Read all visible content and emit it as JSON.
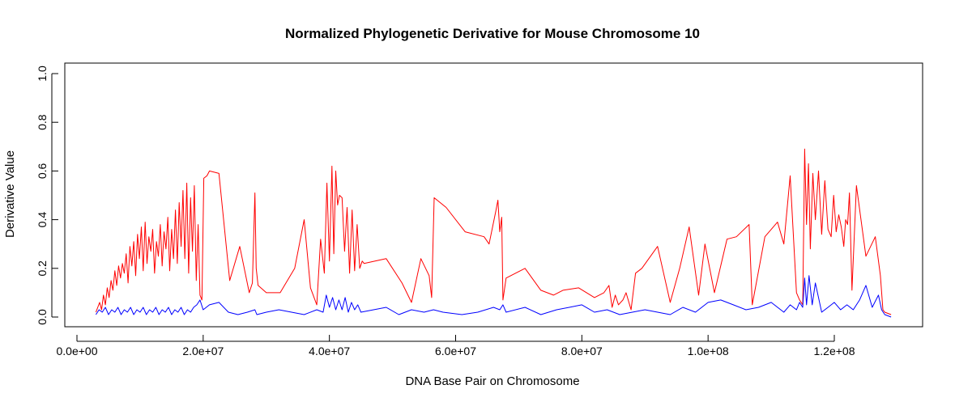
{
  "chart_data": {
    "type": "line",
    "title": "Normalized Phylogenetic Derivative for Mouse Chromosome 10",
    "xlabel": "DNA Base Pair on Chromosome",
    "ylabel": "Derivative Value",
    "xlim": [
      0,
      130000000
    ],
    "ylim": [
      0,
      1.0
    ],
    "x_ticks": [
      {
        "value": 0,
        "label": "0.0e+00"
      },
      {
        "value": 20000000,
        "label": "2.0e+07"
      },
      {
        "value": 40000000,
        "label": "4.0e+07"
      },
      {
        "value": 60000000,
        "label": "6.0e+07"
      },
      {
        "value": 80000000,
        "label": "8.0e+07"
      },
      {
        "value": 100000000,
        "label": "1.0e+08"
      },
      {
        "value": 120000000,
        "label": "1.2e+08"
      }
    ],
    "y_ticks": [
      {
        "value": 0.0,
        "label": "0.0"
      },
      {
        "value": 0.2,
        "label": "0.2"
      },
      {
        "value": 0.4,
        "label": "0.4"
      },
      {
        "value": 0.6,
        "label": "0.6"
      },
      {
        "value": 0.8,
        "label": "0.8"
      },
      {
        "value": 1.0,
        "label": "1.0"
      }
    ],
    "series": [
      {
        "name": "red-series",
        "color": "#ff0000",
        "x": [
          3000000,
          3300000,
          3600000,
          3900000,
          4200000,
          4500000,
          4800000,
          5100000,
          5400000,
          5700000,
          6000000,
          6300000,
          6600000,
          6900000,
          7200000,
          7500000,
          7800000,
          8100000,
          8400000,
          8700000,
          9000000,
          9300000,
          9600000,
          9900000,
          10200000,
          10500000,
          10800000,
          11100000,
          11400000,
          11700000,
          12000000,
          12300000,
          12600000,
          12900000,
          13200000,
          13500000,
          13800000,
          14100000,
          14400000,
          14700000,
          15000000,
          15300000,
          15600000,
          15900000,
          16200000,
          16500000,
          16800000,
          17100000,
          17400000,
          17700000,
          18000000,
          18300000,
          18600000,
          18900000,
          19200000,
          19500000,
          19800000,
          20100000,
          20600000,
          21000000,
          22500000,
          24200000,
          25800000,
          27300000,
          27800000,
          28200000,
          28400000,
          28700000,
          30000000,
          32200000,
          34500000,
          36000000,
          37000000,
          38000000,
          38600000,
          39200000,
          39600000,
          40000000,
          40400000,
          40700000,
          41000000,
          41300000,
          41600000,
          42000000,
          42400000,
          42800000,
          43200000,
          43600000,
          44000000,
          44400000,
          44800000,
          45200000,
          45500000,
          49000000,
          51500000,
          53000000,
          54500000,
          55800000,
          56200000,
          56600000,
          58500000,
          61500000,
          64500000,
          65300000,
          66400000,
          66700000,
          67000000,
          67300000,
          67500000,
          68000000,
          71000000,
          73500000,
          75500000,
          77000000,
          79500000,
          82000000,
          83500000,
          84300000,
          84800000,
          85300000,
          85800000,
          86500000,
          87000000,
          87800000,
          88500000,
          89500000,
          92000000,
          94000000,
          95500000,
          97000000,
          98500000,
          99500000,
          101000000,
          103000000,
          104500000,
          106500000,
          107000000,
          109000000,
          111000000,
          112000000,
          113000000,
          114000000,
          114500000,
          115000000,
          115300000,
          115600000,
          115900000,
          116200000,
          116600000,
          117000000,
          117500000,
          118000000,
          118500000,
          119000000,
          119500000,
          119900000,
          120300000,
          120700000,
          121100000,
          121500000,
          121800000,
          122100000,
          122400000,
          122800000,
          123500000,
          125000000,
          126500000,
          127300000,
          127700000,
          128000000,
          129000000
        ],
        "y": [
          0.02,
          0.04,
          0.06,
          0.03,
          0.09,
          0.05,
          0.12,
          0.08,
          0.15,
          0.11,
          0.19,
          0.13,
          0.21,
          0.16,
          0.22,
          0.18,
          0.26,
          0.14,
          0.29,
          0.21,
          0.31,
          0.17,
          0.34,
          0.24,
          0.37,
          0.19,
          0.39,
          0.22,
          0.33,
          0.27,
          0.36,
          0.18,
          0.31,
          0.25,
          0.38,
          0.21,
          0.35,
          0.28,
          0.41,
          0.19,
          0.36,
          0.24,
          0.44,
          0.22,
          0.47,
          0.29,
          0.52,
          0.24,
          0.55,
          0.18,
          0.49,
          0.27,
          0.54,
          0.15,
          0.38,
          0.09,
          0.07,
          0.57,
          0.58,
          0.6,
          0.59,
          0.15,
          0.29,
          0.1,
          0.14,
          0.51,
          0.2,
          0.13,
          0.1,
          0.1,
          0.2,
          0.4,
          0.12,
          0.05,
          0.32,
          0.18,
          0.55,
          0.23,
          0.62,
          0.26,
          0.6,
          0.46,
          0.5,
          0.49,
          0.27,
          0.45,
          0.18,
          0.44,
          0.19,
          0.38,
          0.2,
          0.23,
          0.22,
          0.24,
          0.14,
          0.06,
          0.24,
          0.17,
          0.08,
          0.49,
          0.45,
          0.35,
          0.33,
          0.3,
          0.44,
          0.48,
          0.35,
          0.41,
          0.07,
          0.16,
          0.2,
          0.11,
          0.09,
          0.11,
          0.12,
          0.08,
          0.1,
          0.13,
          0.04,
          0.09,
          0.05,
          0.07,
          0.1,
          0.03,
          0.18,
          0.2,
          0.29,
          0.06,
          0.2,
          0.37,
          0.09,
          0.3,
          0.1,
          0.32,
          0.33,
          0.38,
          0.05,
          0.33,
          0.39,
          0.3,
          0.58,
          0.1,
          0.07,
          0.05,
          0.69,
          0.38,
          0.63,
          0.28,
          0.59,
          0.4,
          0.6,
          0.34,
          0.56,
          0.36,
          0.33,
          0.5,
          0.35,
          0.42,
          0.37,
          0.29,
          0.4,
          0.38,
          0.51,
          0.11,
          0.54,
          0.25,
          0.33,
          0.17,
          0.03,
          0.02,
          0.01
        ]
      },
      {
        "name": "blue-series",
        "color": "#0000ff",
        "x": [
          3000000,
          3500000,
          4000000,
          4500000,
          5000000,
          5500000,
          6000000,
          6500000,
          7000000,
          7500000,
          8000000,
          8500000,
          9000000,
          9500000,
          10000000,
          10500000,
          11000000,
          11500000,
          12000000,
          12500000,
          13000000,
          13500000,
          14000000,
          14500000,
          15000000,
          15500000,
          16000000,
          16500000,
          17000000,
          17500000,
          18000000,
          18500000,
          19000000,
          19500000,
          20000000,
          21000000,
          22500000,
          24000000,
          25500000,
          27000000,
          28200000,
          28500000,
          30000000,
          32000000,
          34000000,
          36000000,
          38000000,
          39000000,
          39500000,
          40000000,
          40500000,
          41000000,
          41500000,
          42000000,
          42500000,
          43000000,
          43500000,
          44000000,
          44500000,
          45000000,
          47000000,
          49000000,
          51000000,
          53000000,
          55000000,
          56500000,
          58000000,
          61000000,
          63500000,
          66000000,
          67000000,
          67500000,
          68000000,
          71000000,
          73500000,
          76000000,
          78000000,
          80000000,
          82000000,
          84000000,
          86000000,
          88000000,
          90000000,
          92000000,
          94000000,
          96000000,
          98000000,
          100000000,
          102000000,
          104000000,
          106000000,
          108000000,
          110000000,
          112000000,
          113000000,
          114000000,
          114500000,
          115000000,
          115300000,
          115600000,
          116000000,
          116500000,
          117000000,
          118000000,
          119000000,
          120000000,
          121000000,
          122000000,
          123000000,
          124000000,
          125000000,
          126000000,
          127000000,
          127500000,
          128000000,
          129000000
        ],
        "y": [
          0.01,
          0.03,
          0.02,
          0.04,
          0.01,
          0.03,
          0.02,
          0.04,
          0.01,
          0.03,
          0.02,
          0.04,
          0.01,
          0.03,
          0.02,
          0.04,
          0.01,
          0.03,
          0.02,
          0.04,
          0.01,
          0.03,
          0.02,
          0.04,
          0.01,
          0.03,
          0.02,
          0.04,
          0.01,
          0.03,
          0.02,
          0.04,
          0.05,
          0.07,
          0.03,
          0.05,
          0.06,
          0.02,
          0.01,
          0.02,
          0.03,
          0.01,
          0.02,
          0.03,
          0.02,
          0.01,
          0.03,
          0.02,
          0.09,
          0.04,
          0.08,
          0.03,
          0.07,
          0.03,
          0.08,
          0.02,
          0.06,
          0.03,
          0.05,
          0.02,
          0.03,
          0.04,
          0.01,
          0.03,
          0.02,
          0.03,
          0.02,
          0.01,
          0.02,
          0.04,
          0.03,
          0.05,
          0.02,
          0.04,
          0.01,
          0.03,
          0.04,
          0.05,
          0.02,
          0.03,
          0.01,
          0.02,
          0.03,
          0.02,
          0.01,
          0.04,
          0.02,
          0.06,
          0.07,
          0.05,
          0.03,
          0.04,
          0.06,
          0.02,
          0.05,
          0.03,
          0.06,
          0.04,
          0.16,
          0.05,
          0.17,
          0.05,
          0.14,
          0.02,
          0.04,
          0.06,
          0.03,
          0.05,
          0.03,
          0.07,
          0.13,
          0.04,
          0.09,
          0.03,
          0.01,
          0.0
        ]
      }
    ]
  }
}
